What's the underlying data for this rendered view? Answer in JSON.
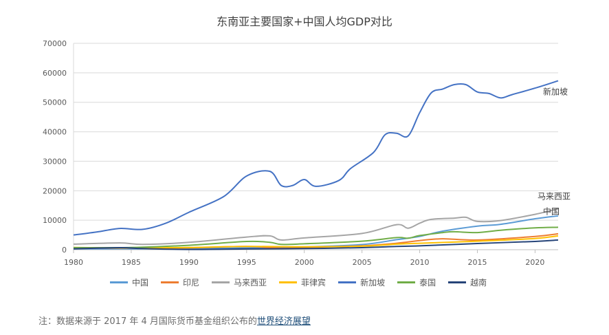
{
  "chart_data": {
    "type": "line",
    "title": "东南亚主要国家+中国人均GDP对比",
    "xlabel": "",
    "ylabel": "",
    "xlim": [
      1980,
      2022
    ],
    "ylim": [
      0,
      70000
    ],
    "x_ticks": [
      "1980",
      "1985",
      "1990",
      "1995",
      "2000",
      "2005",
      "2010",
      "2015",
      "2020"
    ],
    "y_ticks": [
      "0",
      "10000",
      "20000",
      "30000",
      "40000",
      "50000",
      "60000",
      "70000"
    ],
    "grid": true,
    "legend_position": "bottom",
    "series": [
      {
        "name": "中国",
        "color": "#5b9bd5",
        "points": [
          [
            1980,
            300
          ],
          [
            1985,
            300
          ],
          [
            1990,
            350
          ],
          [
            1995,
            600
          ],
          [
            2000,
            950
          ],
          [
            2005,
            1750
          ],
          [
            2008,
            3400
          ],
          [
            2010,
            4500
          ],
          [
            2012,
            6300
          ],
          [
            2015,
            8000
          ],
          [
            2017,
            8600
          ],
          [
            2020,
            10500
          ],
          [
            2022,
            11500
          ]
        ]
      },
      {
        "name": "印尼",
        "color": "#ed7d31",
        "points": [
          [
            1980,
            600
          ],
          [
            1985,
            550
          ],
          [
            1990,
            650
          ],
          [
            1995,
            1100
          ],
          [
            1998,
            500
          ],
          [
            2000,
            800
          ],
          [
            2005,
            1300
          ],
          [
            2008,
            2200
          ],
          [
            2010,
            3100
          ],
          [
            2012,
            3700
          ],
          [
            2015,
            3300
          ],
          [
            2020,
            4500
          ],
          [
            2022,
            5400
          ]
        ]
      },
      {
        "name": "马来西亚",
        "color": "#a5a5a5",
        "points": [
          [
            1980,
            1900
          ],
          [
            1984,
            2300
          ],
          [
            1986,
            1800
          ],
          [
            1990,
            2500
          ],
          [
            1995,
            4300
          ],
          [
            1997,
            4700
          ],
          [
            1998,
            3300
          ],
          [
            2000,
            4000
          ],
          [
            2005,
            5500
          ],
          [
            2008,
            8500
          ],
          [
            2009,
            7300
          ],
          [
            2010,
            9000
          ],
          [
            2011,
            10300
          ],
          [
            2013,
            10700
          ],
          [
            2014,
            11000
          ],
          [
            2015,
            9600
          ],
          [
            2017,
            9900
          ],
          [
            2020,
            12000
          ],
          [
            2022,
            13900
          ]
        ]
      },
      {
        "name": "菲律宾",
        "color": "#ffc000",
        "points": [
          [
            1980,
            750
          ],
          [
            1985,
            600
          ],
          [
            1990,
            750
          ],
          [
            1995,
            1100
          ],
          [
            2000,
            1000
          ],
          [
            2005,
            1200
          ],
          [
            2008,
            1900
          ],
          [
            2010,
            2200
          ],
          [
            2015,
            2900
          ],
          [
            2020,
            3800
          ],
          [
            2022,
            4700
          ]
        ]
      },
      {
        "name": "新加坡",
        "color": "#4472c4",
        "points": [
          [
            1980,
            5000
          ],
          [
            1982,
            6000
          ],
          [
            1984,
            7200
          ],
          [
            1986,
            6900
          ],
          [
            1988,
            9000
          ],
          [
            1990,
            12700
          ],
          [
            1993,
            18000
          ],
          [
            1995,
            25000
          ],
          [
            1997,
            26600
          ],
          [
            1998,
            21800
          ],
          [
            1999,
            21800
          ],
          [
            2000,
            23800
          ],
          [
            2001,
            21500
          ],
          [
            2003,
            23500
          ],
          [
            2004,
            27500
          ],
          [
            2006,
            33000
          ],
          [
            2007,
            39000
          ],
          [
            2008,
            39500
          ],
          [
            2009,
            38600
          ],
          [
            2010,
            46500
          ],
          [
            2011,
            53200
          ],
          [
            2012,
            54500
          ],
          [
            2013,
            56000
          ],
          [
            2014,
            56000
          ],
          [
            2015,
            53500
          ],
          [
            2016,
            53000
          ],
          [
            2017,
            51500
          ],
          [
            2018,
            52600
          ],
          [
            2020,
            54800
          ],
          [
            2022,
            57300
          ]
        ]
      },
      {
        "name": "泰国",
        "color": "#70ad47",
        "points": [
          [
            1980,
            700
          ],
          [
            1985,
            750
          ],
          [
            1990,
            1500
          ],
          [
            1995,
            2800
          ],
          [
            1997,
            2500
          ],
          [
            1998,
            1800
          ],
          [
            2000,
            2000
          ],
          [
            2005,
            2900
          ],
          [
            2008,
            4100
          ],
          [
            2009,
            3900
          ],
          [
            2010,
            4800
          ],
          [
            2012,
            5800
          ],
          [
            2013,
            6100
          ],
          [
            2015,
            5800
          ],
          [
            2017,
            6600
          ],
          [
            2020,
            7400
          ],
          [
            2022,
            7600
          ]
        ]
      },
      {
        "name": "越南",
        "color": "#264478",
        "points": [
          [
            1980,
            300
          ],
          [
            1984,
            700
          ],
          [
            1986,
            400
          ],
          [
            1990,
            100
          ],
          [
            1995,
            250
          ],
          [
            2000,
            400
          ],
          [
            2005,
            700
          ],
          [
            2008,
            1100
          ],
          [
            2010,
            1300
          ],
          [
            2015,
            2100
          ],
          [
            2020,
            2800
          ],
          [
            2022,
            3300
          ]
        ]
      }
    ],
    "end_labels": [
      {
        "text": "新加坡",
        "series": "新加坡"
      },
      {
        "text": "马来西亚",
        "series": "马来西亚"
      },
      {
        "text": "中国",
        "series": "中国"
      }
    ]
  },
  "note": {
    "prefix": "注：数据来源于 2017 年 4 月国际货币基金组织公布的",
    "link": "世界经济展望"
  }
}
